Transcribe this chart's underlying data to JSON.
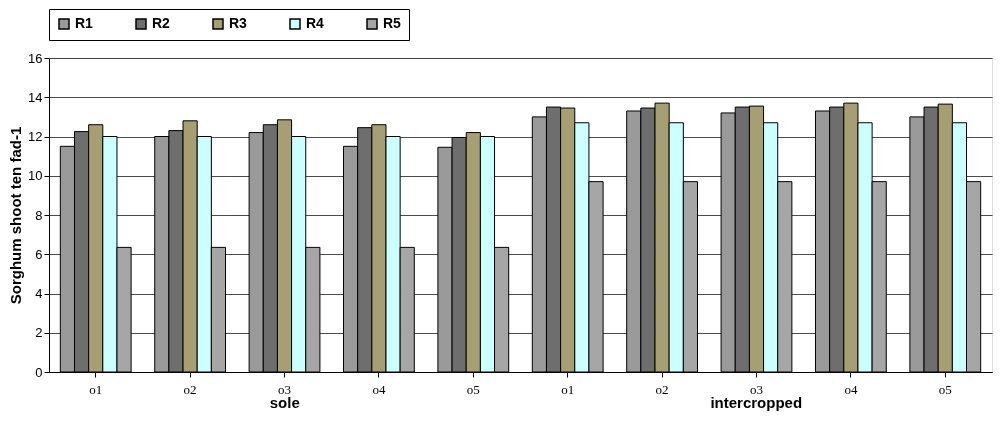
{
  "chart_data": {
    "type": "bar",
    "ylabel": "Sorghum shoot ten fad-1",
    "categories": [
      "o1",
      "o2",
      "o3",
      "o4",
      "o5",
      "o1",
      "o2",
      "o3",
      "o4",
      "o5"
    ],
    "annotations": [
      "sole",
      "intercropped"
    ],
    "series": [
      {
        "name": "R1",
        "color": "#9a9a9a",
        "values": [
          11.5,
          12.0,
          12.2,
          11.5,
          11.45,
          13.0,
          13.3,
          13.2,
          13.3,
          13.0
        ]
      },
      {
        "name": "R2",
        "color": "#6e6e6e",
        "values": [
          12.25,
          12.3,
          12.6,
          12.45,
          11.95,
          13.5,
          13.45,
          13.5,
          13.5,
          13.5
        ]
      },
      {
        "name": "R3",
        "color": "#a79f74",
        "values": [
          12.6,
          12.8,
          12.85,
          12.6,
          12.2,
          13.45,
          13.7,
          13.55,
          13.7,
          13.65
        ]
      },
      {
        "name": "R4",
        "color": "#ccffff",
        "values": [
          12.0,
          12.0,
          12.0,
          12.0,
          12.0,
          12.7,
          12.7,
          12.7,
          12.7,
          12.7
        ]
      },
      {
        "name": "R5",
        "color": "#a6a6a6",
        "values": [
          6.35,
          6.35,
          6.35,
          6.35,
          6.35,
          9.7,
          9.7,
          9.7,
          9.7,
          9.7
        ]
      }
    ],
    "ylim": [
      0,
      16
    ],
    "yticks": [
      0,
      2,
      4,
      6,
      8,
      10,
      12,
      14,
      16
    ],
    "grid": "y",
    "legend": "top"
  }
}
